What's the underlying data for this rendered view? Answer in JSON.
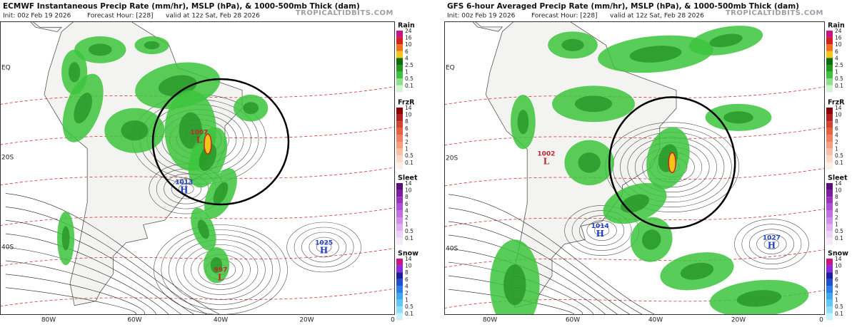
{
  "panels": [
    {
      "title": "ECMWF Instantaneous Precip Rate (mm/hr), MSLP (hPa), & 1000-500mb Thick (dam)",
      "init": "Init: 00z Feb 19 2026",
      "forecast_hour": "Forecast Hour: [228]",
      "valid": "valid at 12z Sat, Feb 28 2026",
      "credit": "TROPICALTIDBITS.COM",
      "lat_labels": [
        "EQ",
        "20S",
        "40S"
      ],
      "lon_labels": [
        "80W",
        "60W",
        "40W",
        "20W",
        "0"
      ],
      "pressure_centers": [
        {
          "value": "1007",
          "kind": "L",
          "color": "#c0282d"
        },
        {
          "value": "1013",
          "kind": "H",
          "color": "#1f3fbf"
        },
        {
          "value": "997",
          "kind": "L",
          "color": "#c0282d"
        },
        {
          "value": "1025",
          "kind": "H",
          "color": "#1f3fbf"
        }
      ]
    },
    {
      "title": "GFS 6-hour Averaged Precip Rate (mm/hr), MSLP (hPa), & 1000-500mb Thick (dam)",
      "init": "Init: 00z Feb 19 2026",
      "forecast_hour": "Forecast Hour: [228]",
      "valid": "valid at 12z Sat, Feb 28 2026",
      "credit": "TROPICALTIDBITS.COM",
      "lat_labels": [
        "EQ",
        "20S",
        "40S"
      ],
      "lon_labels": [
        "80W",
        "60W",
        "40W",
        "20W",
        "0"
      ],
      "pressure_centers": [
        {
          "value": "1002",
          "kind": "L",
          "color": "#c0282d"
        },
        {
          "value": "1014",
          "kind": "H",
          "color": "#1f3fbf"
        },
        {
          "value": "1027",
          "kind": "H",
          "color": "#1f3fbf"
        }
      ]
    }
  ],
  "legend": [
    {
      "name": "Rain",
      "ticks": [
        "24",
        "16",
        "10",
        "6",
        "4",
        "2.5",
        "1",
        "0.5",
        "0.1"
      ],
      "colors": [
        "#c71585",
        "#d62020",
        "#f07020",
        "#f5c518",
        "#0b6e0b",
        "#1f9a1f",
        "#3fc23f",
        "#8ee08e",
        "#d4f5d4"
      ]
    },
    {
      "name": "FrzR",
      "ticks": [
        "14",
        "10",
        "8",
        "6",
        "4",
        "2",
        "1",
        "0.5",
        "0.1"
      ],
      "colors": [
        "#8b0000",
        "#b22222",
        "#d2432f",
        "#e8603c",
        "#f08060",
        "#f4a080",
        "#f8c0a8",
        "#fbd8c8",
        "#fdeee6"
      ]
    },
    {
      "name": "Sleet",
      "ticks": [
        "14",
        "10",
        "8",
        "6",
        "4",
        "2",
        "1",
        "0.5",
        "0.1"
      ],
      "colors": [
        "#5a0f7a",
        "#7a1fa0",
        "#9a30c0",
        "#b050d8",
        "#c070e0",
        "#d090e8",
        "#e0b0f0",
        "#ecd0f6",
        "#f6e8fb"
      ]
    },
    {
      "name": "Snow",
      "ticks": [
        "14",
        "10",
        "8",
        "6",
        "4",
        "2",
        "1",
        "0.5",
        "0.1"
      ],
      "colors": [
        "#c71585",
        "#8a2be2",
        "#1e1ea0",
        "#1e50d0",
        "#2a80e8",
        "#40a8f0",
        "#60c8f8",
        "#90e0fc",
        "#c8f2fe"
      ]
    }
  ]
}
